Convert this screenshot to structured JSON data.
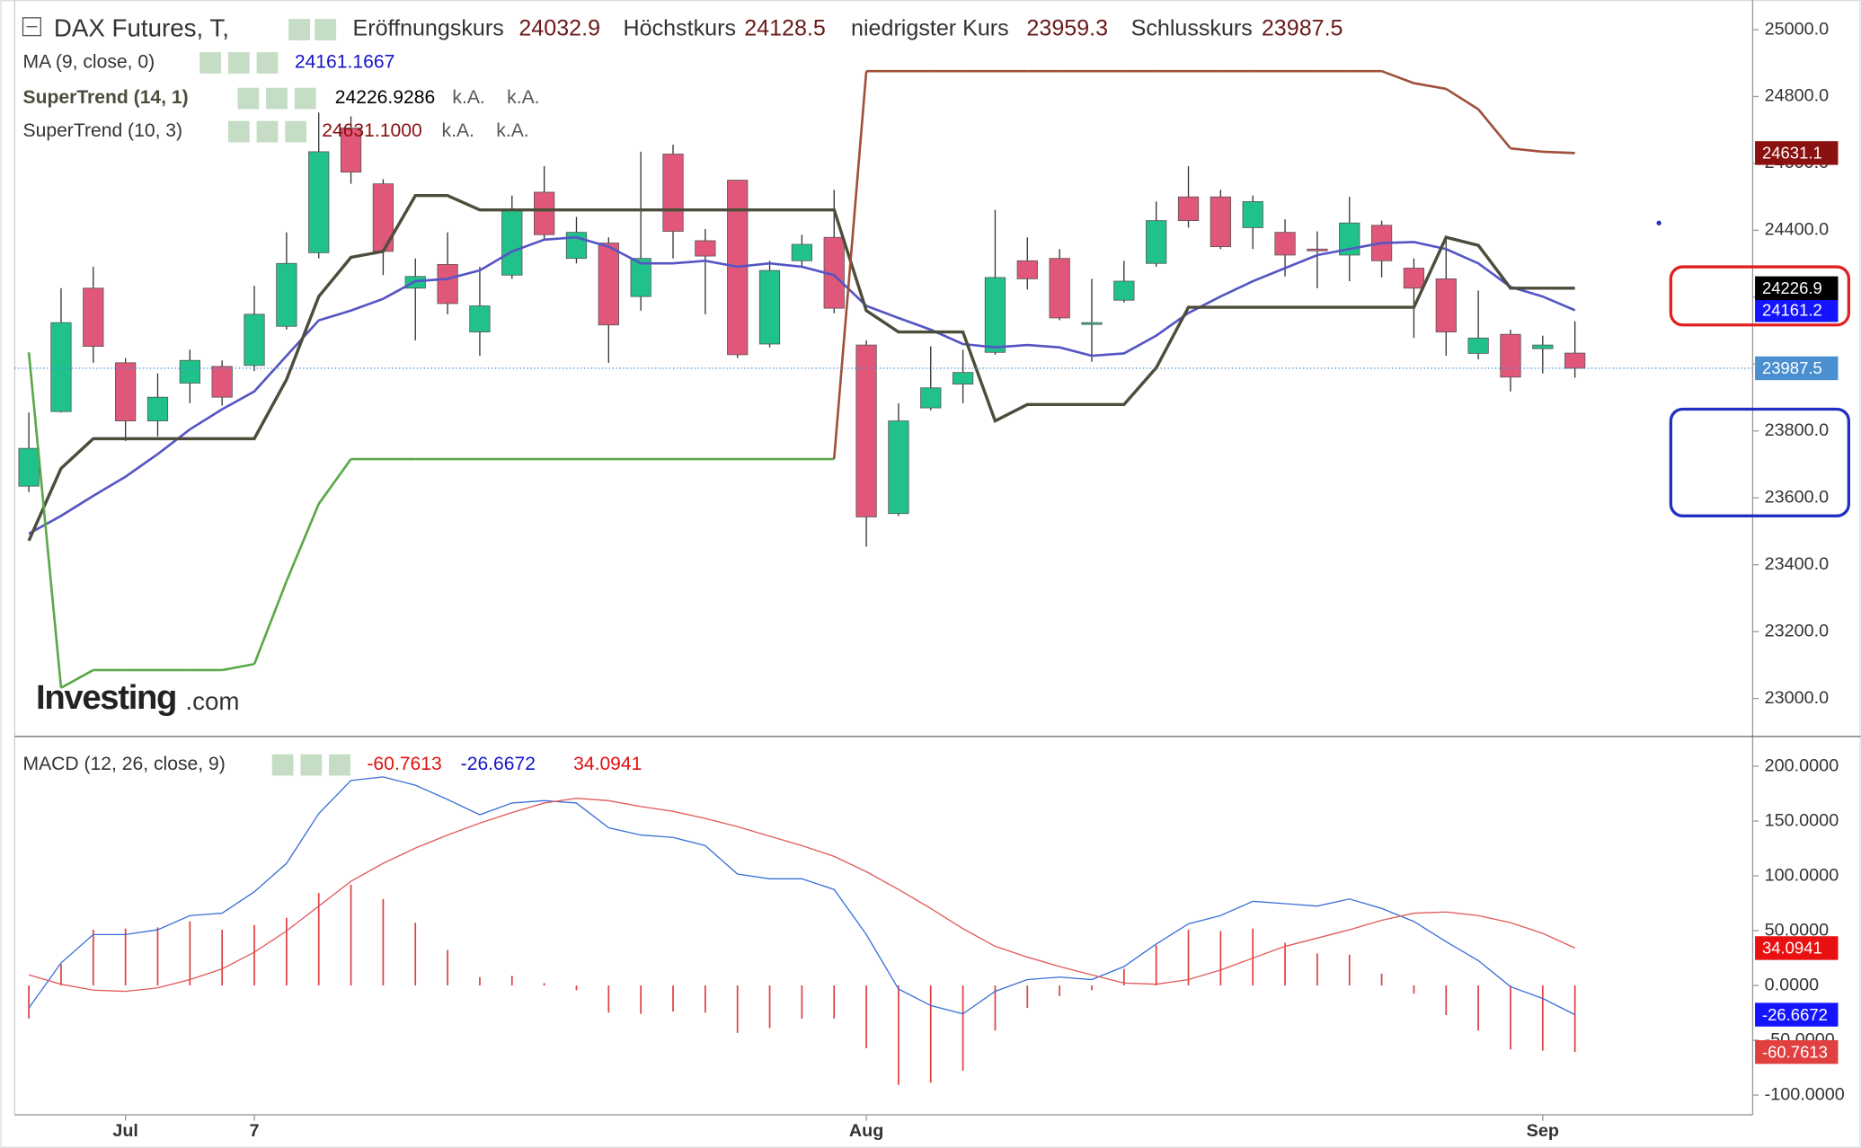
{
  "chart_data": [
    {
      "type": "candlestick",
      "title": "DAX Futures, T,",
      "ohlc_labels": [
        "Eröffnungskurs",
        "Höchstkurs",
        "niedrigster Kurs",
        "Schlusskurs"
      ],
      "categories": [
        null,
        null,
        null,
        "Jul",
        null,
        null,
        null,
        "7",
        null,
        null,
        null,
        null,
        null,
        null,
        null,
        null,
        null,
        null,
        null,
        null,
        null,
        null,
        null,
        null,
        null,
        null,
        "Aug",
        null,
        null,
        null,
        null,
        null,
        null,
        null,
        null,
        null,
        null,
        null,
        null,
        null,
        null,
        null,
        null,
        null,
        null,
        null,
        null,
        "Sep",
        null
      ],
      "open": [
        23635,
        23858,
        24227,
        24004,
        23830,
        23943,
        23993,
        23996,
        24113,
        24333,
        24706,
        24539,
        24227,
        24298,
        24096,
        24266,
        24514,
        24316,
        24362,
        24202,
        24628,
        24369,
        24550,
        24060,
        24309,
        24379,
        24057,
        23553,
        23869,
        23940,
        24035,
        24309,
        24316,
        24121,
        24191,
        24301,
        24500,
        24500,
        24408,
        24394,
        24344,
        24326,
        24415,
        24287,
        24255,
        24032,
        24089,
        24046,
        24032.9
      ],
      "high": [
        23855,
        24227,
        24291,
        24018,
        23972,
        24043,
        24011,
        24234,
        24394,
        24752,
        24741,
        24553,
        24316,
        24394,
        24291,
        24504,
        24592,
        24440,
        24379,
        24635,
        24656,
        24404,
        24550,
        24309,
        24387,
        24521,
        24071,
        23883,
        24053,
        24043,
        24461,
        24379,
        24344,
        24255,
        24309,
        24486,
        24592,
        24521,
        24504,
        24433,
        24397,
        24500,
        24429,
        24316,
        24376,
        24220,
        24103,
        24085,
        24128.5
      ],
      "low": [
        23617,
        23855,
        24004,
        23770,
        23784,
        23883,
        23876,
        23979,
        24103,
        24316,
        24539,
        24266,
        24071,
        24149,
        24025,
        24255,
        24372,
        24301,
        24004,
        24160,
        24316,
        24149,
        24018,
        24050,
        24291,
        24152,
        23454,
        23546,
        23862,
        23883,
        24028,
        24223,
        24131,
        24007,
        24184,
        24291,
        24408,
        24344,
        24344,
        24262,
        24227,
        24248,
        24259,
        24078,
        24025,
        24014,
        23918,
        23972,
        23959.3
      ],
      "close": [
        23748,
        24124,
        24053,
        23830,
        23901,
        24011,
        23901,
        24149,
        24301,
        24635,
        24574,
        24337,
        24262,
        24181,
        24174,
        24461,
        24387,
        24394,
        24117,
        24316,
        24397,
        24323,
        24028,
        24280,
        24358,
        24167,
        23543,
        23830,
        23929,
        23975,
        24259,
        24255,
        24138,
        24124,
        24248,
        24429,
        24429,
        24351,
        24486,
        24326,
        24340,
        24422,
        24309,
        24227,
        24096,
        24078,
        23961,
        24057,
        23987.5
      ],
      "up_color": "#21c18c",
      "down_color": "#e0577a",
      "price_line_color": "#4a8fd0",
      "ylim": [
        22890,
        25071
      ],
      "yticks": [
        {
          "value": 23000,
          "label": "23000.0"
        },
        {
          "value": 23200,
          "label": "23200.0"
        },
        {
          "value": 23400,
          "label": "23400.0"
        },
        {
          "value": 23600,
          "label": "23600.0"
        },
        {
          "value": 23800,
          "label": "23800.0"
        },
        {
          "value": 24000,
          "label": "24000.0"
        },
        {
          "value": 24200,
          "label": "24200.0"
        },
        {
          "value": 24400,
          "label": "24400.0"
        },
        {
          "value": 24600,
          "label": "24600.0"
        },
        {
          "value": 24800,
          "label": "24800.0"
        },
        {
          "value": 25000,
          "label": "25000.0"
        }
      ],
      "series": [
        {
          "name": "MA (9, close, 0)",
          "color": "#5555c4",
          "tag_color": "#1414ff",
          "last_label": "24161.2",
          "values": [
            23493,
            23546,
            23606,
            23663,
            23731,
            23805,
            23865,
            23918,
            24025,
            24131,
            24160,
            24195,
            24248,
            24255,
            24280,
            24337,
            24372,
            24379,
            24351,
            24301,
            24301,
            24309,
            24291,
            24301,
            24291,
            24266,
            24174,
            24138,
            24103,
            24060,
            24050,
            24057,
            24050,
            24025,
            24032,
            24085,
            24153,
            24202,
            24248,
            24287,
            24326,
            24344,
            24362,
            24365,
            24344,
            24301,
            24231,
            24202,
            24161.1667
          ]
        },
        {
          "name": "SuperTrend (14, 1)",
          "color": "#4d4d3c",
          "tag_color": "#000000",
          "last_label": "24226.9",
          "extra": [
            "k.A.",
            "k.A."
          ],
          "values": [
            23472,
            23688,
            23777,
            23777,
            23777,
            23777,
            23777,
            23777,
            23954,
            24202,
            24319,
            24337,
            24504,
            24504,
            24461,
            24461,
            24461,
            24461,
            24461,
            24461,
            24461,
            24461,
            24461,
            24461,
            24461,
            24461,
            24160,
            24096,
            24096,
            24096,
            23830,
            23879,
            23879,
            23879,
            23879,
            23989,
            24170,
            24170,
            24170,
            24170,
            24170,
            24170,
            24170,
            24170,
            24379,
            24355,
            24227,
            24227,
            24226.9286
          ]
        },
        {
          "name": "SuperTrend (10, 3)",
          "up_color": "#5aa84a",
          "down_color": "#a0503a",
          "tag_color": "#8b1010",
          "legend_label": "24631.1000",
          "extra": [
            "k.A.",
            "k.A."
          ],
          "values": [
            24035,
            23032,
            23085,
            23085,
            23085,
            23085,
            23085,
            23103,
            23351,
            23582,
            23716,
            23716,
            23716,
            23716,
            23716,
            23716,
            23716,
            23716,
            23716,
            23716,
            23716,
            23716,
            23716,
            23716,
            23716,
            23716,
            24876,
            24876,
            24876,
            24876,
            24876,
            24876,
            24876,
            24876,
            24876,
            24876,
            24876,
            24876,
            24876,
            24876,
            24876,
            24876,
            24876,
            24840,
            24823,
            24762,
            24645,
            24635,
            24631.1
          ]
        }
      ],
      "watermark": [
        "Investing",
        ".com"
      ]
    },
    {
      "type": "macd",
      "name": "MACD (12, 26, close, 9)",
      "ylim": [
        -118,
        225
      ],
      "yticks": [
        {
          "value": -100,
          "label": "-100.0000"
        },
        {
          "value": -50,
          "label": "-50.0000"
        },
        {
          "value": 0,
          "label": "0.0000"
        },
        {
          "value": 50,
          "label": "50.0000"
        },
        {
          "value": 100,
          "label": "100.0000"
        },
        {
          "value": 150,
          "label": "150.0000"
        },
        {
          "value": 200,
          "label": "200.0000"
        }
      ],
      "series": [
        {
          "name": "histogram",
          "color": "#e04040",
          "values": [
            -30.2,
            19.4,
            50.8,
            51.9,
            53,
            58.4,
            50.8,
            55.1,
            61.7,
            84.4,
            91.9,
            78.9,
            57.3,
            32.4,
            7.6,
            8.7,
            2.1,
            -4.3,
            -24.8,
            -25.9,
            -23.8,
            -24.8,
            -43.3,
            -38.9,
            -30.3,
            -30.2,
            -57.3,
            -90.8,
            -88.7,
            -77.8,
            -41.1,
            -20.5,
            -9.7,
            -4.3,
            15.1,
            36.7,
            50.8,
            49.7,
            51.9,
            38.9,
            29.2,
            28.1,
            10.8,
            -7.5,
            -27,
            -41.1,
            -58.4,
            -59.5,
            -60.7613
          ]
        },
        {
          "name": "macd",
          "color": "#3a6fd8",
          "tag_color": "#1414ff",
          "values": [
            -20.5,
            20.5,
            46.5,
            46.5,
            50.8,
            63.8,
            65.9,
            85.4,
            111.4,
            156.8,
            187,
            190.3,
            182.7,
            169.7,
            155.7,
            166.5,
            168.6,
            166.5,
            143.8,
            137.3,
            135.1,
            127.6,
            101.6,
            97.3,
            97.3,
            87.6,
            46.5,
            -3.2,
            -18.4,
            -25.9,
            -5.4,
            5.4,
            7.6,
            5.4,
            17.3,
            37.8,
            56.2,
            63.8,
            76.8,
            74.6,
            72.4,
            78.9,
            70.3,
            58.4,
            40,
            22.7,
            -1.1,
            -11.9,
            -26.6672
          ]
        },
        {
          "name": "signal",
          "color": "#e05a5a",
          "tag_color": "#e81010",
          "values": [
            9.7,
            1.1,
            -4.3,
            -5.4,
            -2.2,
            5.4,
            15.1,
            30.3,
            49.7,
            72.4,
            95.1,
            111.4,
            125.4,
            137.3,
            148.1,
            157.8,
            166.5,
            170.8,
            168.6,
            163.2,
            158.9,
            152.4,
            144.9,
            136.2,
            127.6,
            117.8,
            103.8,
            87.6,
            70.3,
            51.9,
            35.7,
            25.9,
            17.3,
            9.7,
            2.2,
            1.1,
            5.4,
            14.1,
            24.9,
            35.7,
            43.2,
            50.8,
            59.5,
            65.9,
            67,
            63.8,
            57.3,
            47.6,
            34.0941
          ]
        }
      ]
    }
  ]
}
